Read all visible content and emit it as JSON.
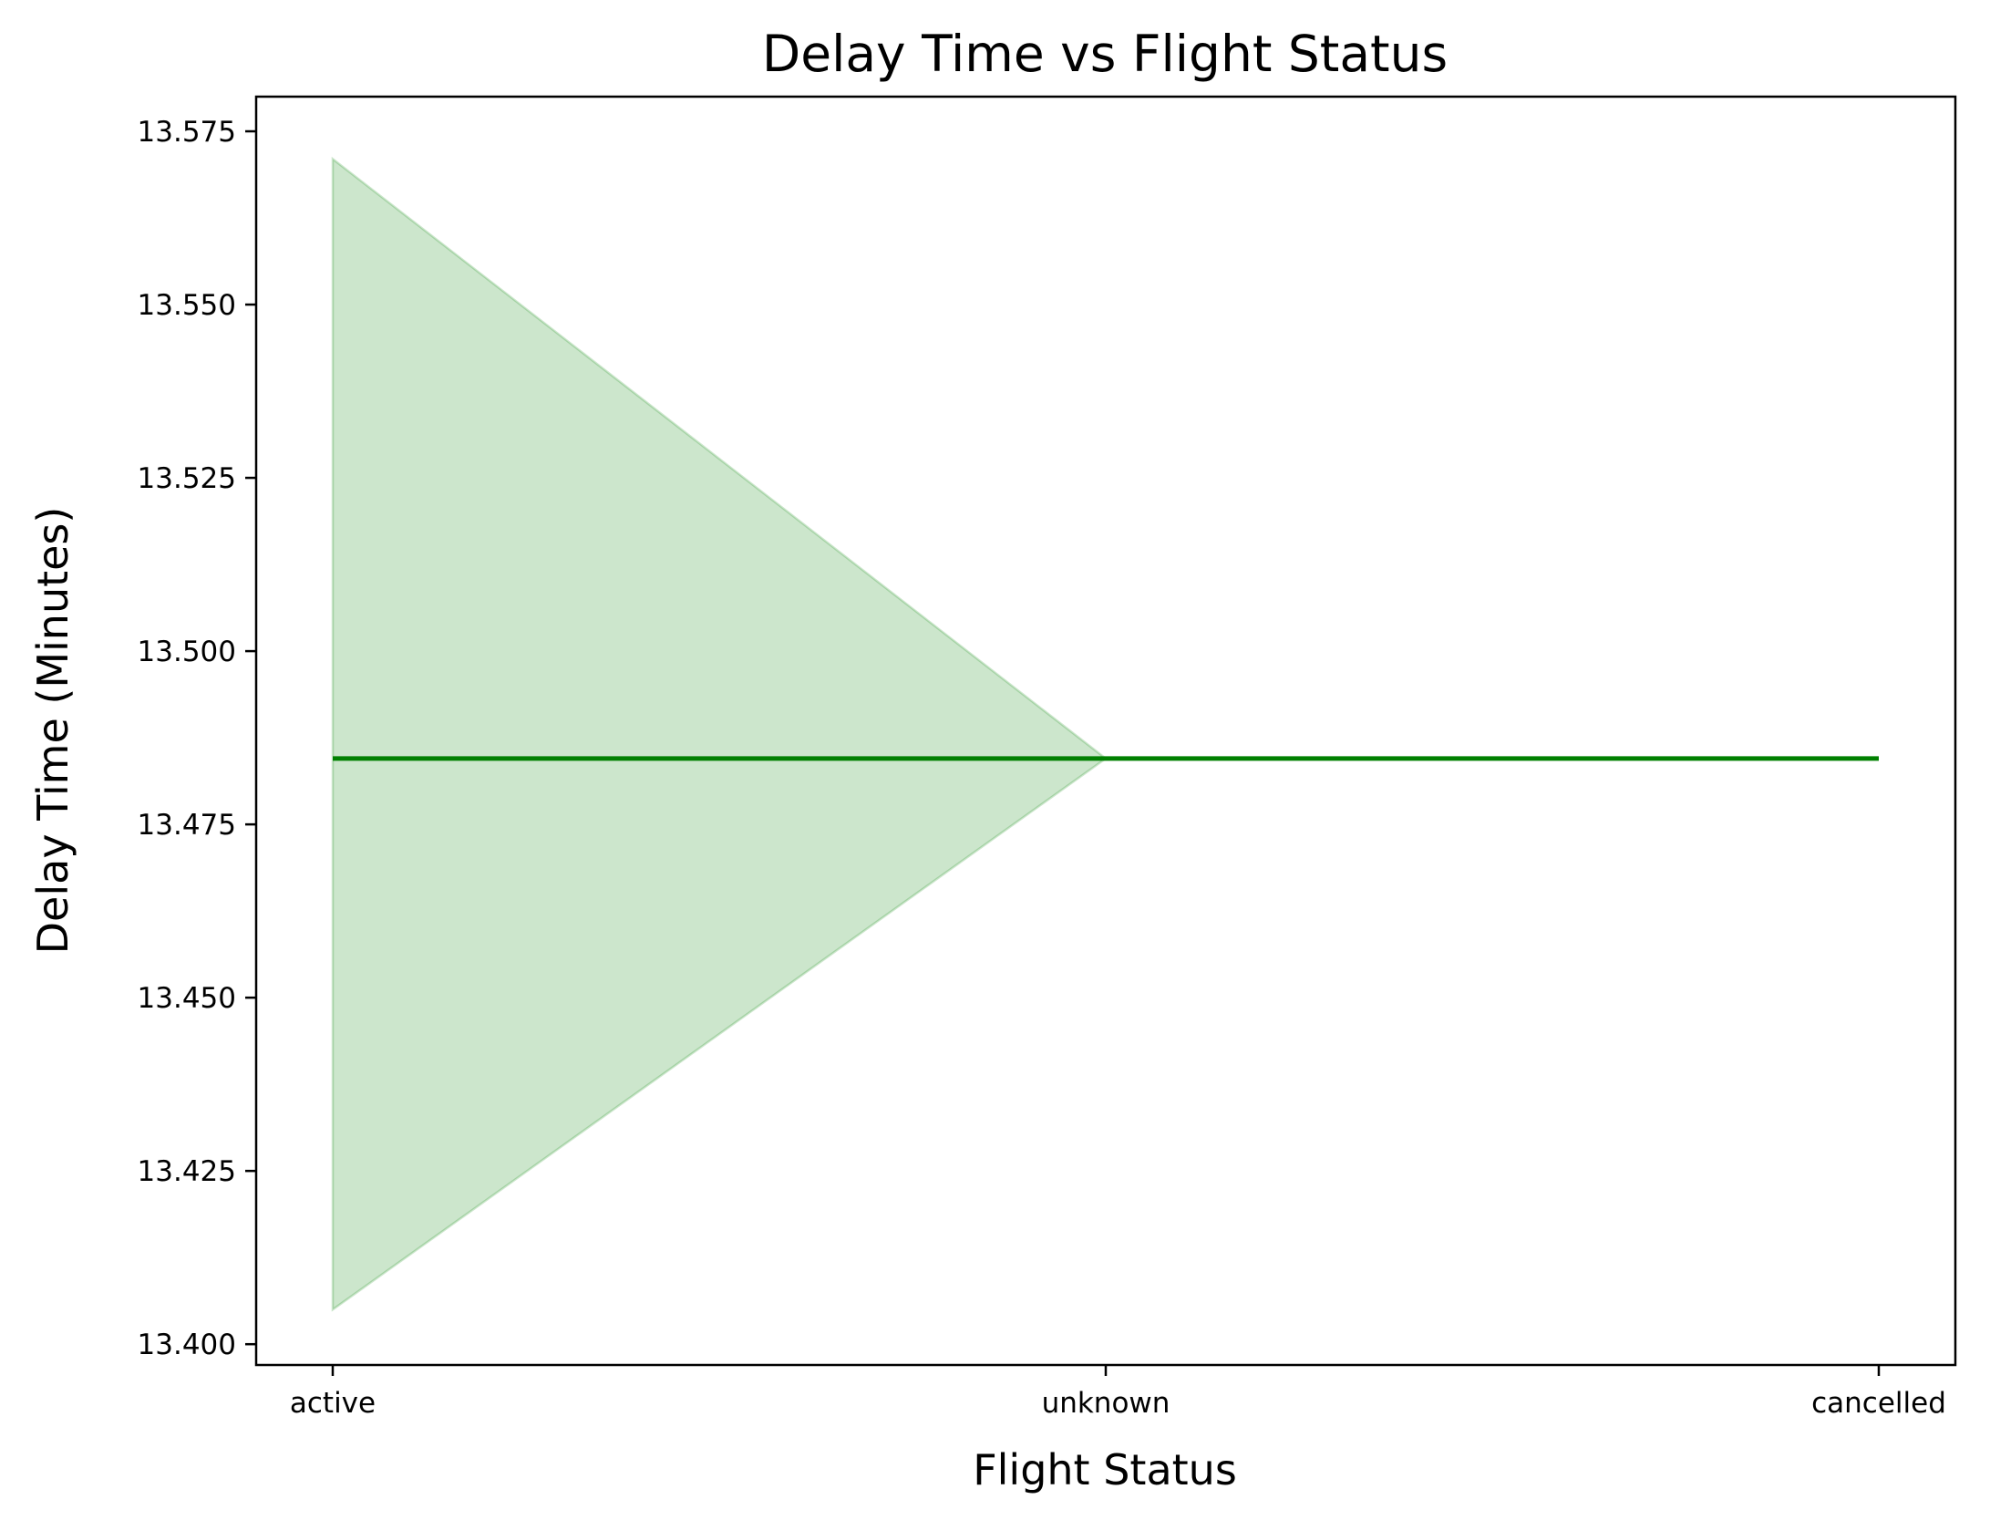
{
  "chart_data": {
    "type": "line",
    "title": "Delay Time vs Flight Status",
    "xlabel": "Flight Status",
    "ylabel": "Delay Time (Minutes)",
    "categories": [
      "active",
      "unknown",
      "cancelled"
    ],
    "series": [
      {
        "values": [
          13.4845,
          13.4845,
          13.4845
        ],
        "ci_lower": [
          13.405,
          13.4845,
          13.4845
        ],
        "ci_upper": [
          13.571,
          13.4845,
          13.4845
        ],
        "color": "#008000",
        "band_color": "#008000"
      }
    ],
    "ylim": [
      13.397,
      13.58
    ],
    "yticks": [
      "13.400",
      "13.425",
      "13.450",
      "13.475",
      "13.500",
      "13.525",
      "13.550",
      "13.575"
    ],
    "grid": false,
    "legend": "none"
  }
}
